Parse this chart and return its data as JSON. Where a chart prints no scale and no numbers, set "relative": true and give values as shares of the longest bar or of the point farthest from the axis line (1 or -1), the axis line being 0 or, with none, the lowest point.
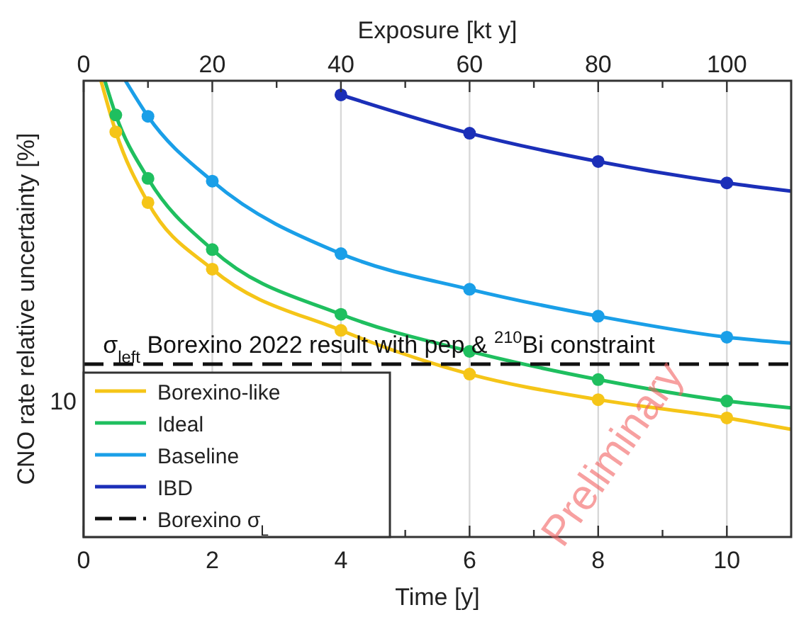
{
  "chart_data": {
    "type": "line",
    "relative": true,
    "xlabel": "Time [y]",
    "x2label": "Exposure [kt y]",
    "ylabel": "CNO rate relative uncertainty [%]",
    "xlim": [
      0,
      11
    ],
    "xticks": [
      0,
      {
        "value": 1,
        "label": null
      },
      2,
      {
        "value": 3,
        "label": null
      },
      4,
      {
        "value": 5,
        "label": null
      },
      6,
      {
        "value": 7,
        "label": null
      },
      8,
      {
        "value": 9,
        "label": null
      },
      10
    ],
    "x2lim": [
      0,
      110
    ],
    "x2ticks": [
      0,
      {
        "value": 10,
        "label": null
      },
      20,
      {
        "value": 30,
        "label": null
      },
      40,
      {
        "value": 50,
        "label": null
      },
      60,
      {
        "value": 70,
        "label": null
      },
      80,
      {
        "value": 90,
        "label": null
      },
      100
    ],
    "grid": "x",
    "legend": "bottom left",
    "series": [
      {
        "type": "line",
        "name": "Borexino-like",
        "color": "#f5c518",
        "x": [
          0.27,
          0.5,
          1,
          2,
          4,
          6,
          8,
          10,
          11
        ],
        "values": [
          1,
          0.888,
          0.733,
          0.587,
          0.453,
          0.357,
          0.301,
          0.261,
          0.236
        ]
      },
      {
        "type": "line",
        "name": "Ideal",
        "color": "#1fbf5f",
        "x": [
          0.33,
          0.5,
          1,
          2,
          4,
          6,
          8,
          10,
          11
        ],
        "values": [
          1,
          0.925,
          0.786,
          0.63,
          0.488,
          0.407,
          0.345,
          0.298,
          0.283
        ]
      },
      {
        "type": "line",
        "name": "Baseline",
        "color": "#1a9fe8",
        "x": [
          0.65,
          1,
          2,
          4,
          6,
          8,
          10,
          11
        ],
        "values": [
          1,
          0.922,
          0.78,
          0.621,
          0.543,
          0.484,
          0.438,
          0.425
        ]
      },
      {
        "type": "line",
        "name": "IBD",
        "color": "#1b2fb8",
        "x": [
          4,
          6,
          8,
          10,
          11
        ],
        "values": [
          0.969,
          0.885,
          0.823,
          0.776,
          0.758
        ]
      },
      {
        "type": "line",
        "name": "Borexino σ$_{L}$",
        "color": "#111111",
        "line_style": "dashed",
        "x": [
          0,
          11
        ],
        "values": [
          0.379,
          0.379
        ]
      },
      {
        "type": "scatter",
        "color": "#f5c518",
        "x": [
          0.5,
          1,
          2,
          4,
          6,
          8,
          10
        ],
        "values": [
          0.888,
          0.733,
          0.587,
          0.453,
          0.357,
          0.301,
          0.261
        ]
      },
      {
        "type": "scatter",
        "color": "#1fbf5f",
        "x": [
          0.5,
          1,
          2,
          4,
          6,
          8,
          10
        ],
        "values": [
          0.925,
          0.786,
          0.63,
          0.488,
          0.407,
          0.345,
          0.298
        ]
      },
      {
        "type": "scatter",
        "color": "#1a9fe8",
        "x": [
          1,
          2,
          4,
          6,
          8,
          10
        ],
        "values": [
          0.922,
          0.78,
          0.621,
          0.543,
          0.484,
          0.438
        ]
      },
      {
        "type": "scatter",
        "color": "#1b2fb8",
        "x": [
          4,
          6,
          8,
          10
        ],
        "values": [
          0.969,
          0.885,
          0.823,
          0.776
        ]
      }
    ],
    "annotations": [
      {
        "text": "σ$_{left}$ Borexino 2022 result with pep & $^{210}$Bi constraint",
        "x": 0.3,
        "y": 0.379
      },
      "Preliminary",
      "10"
    ]
  }
}
